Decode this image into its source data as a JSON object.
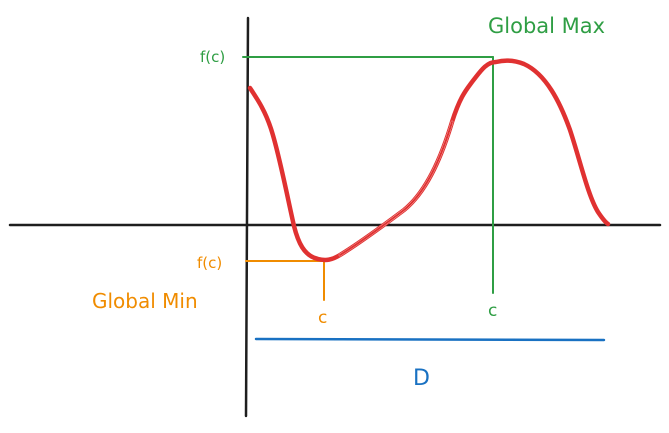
{
  "diagram": {
    "labels": {
      "global_max": "Global Max",
      "global_min": "Global Min",
      "max_fc": "f(c)",
      "min_fc": "f(c)",
      "max_c": "c",
      "min_c": "c",
      "domain": "D"
    },
    "colors": {
      "axes": "#1e1e1e",
      "curve": "#e03131",
      "max": "#2f9e44",
      "min": "#f08c00",
      "domain": "#1971c2",
      "background": "#ffffff"
    }
  }
}
